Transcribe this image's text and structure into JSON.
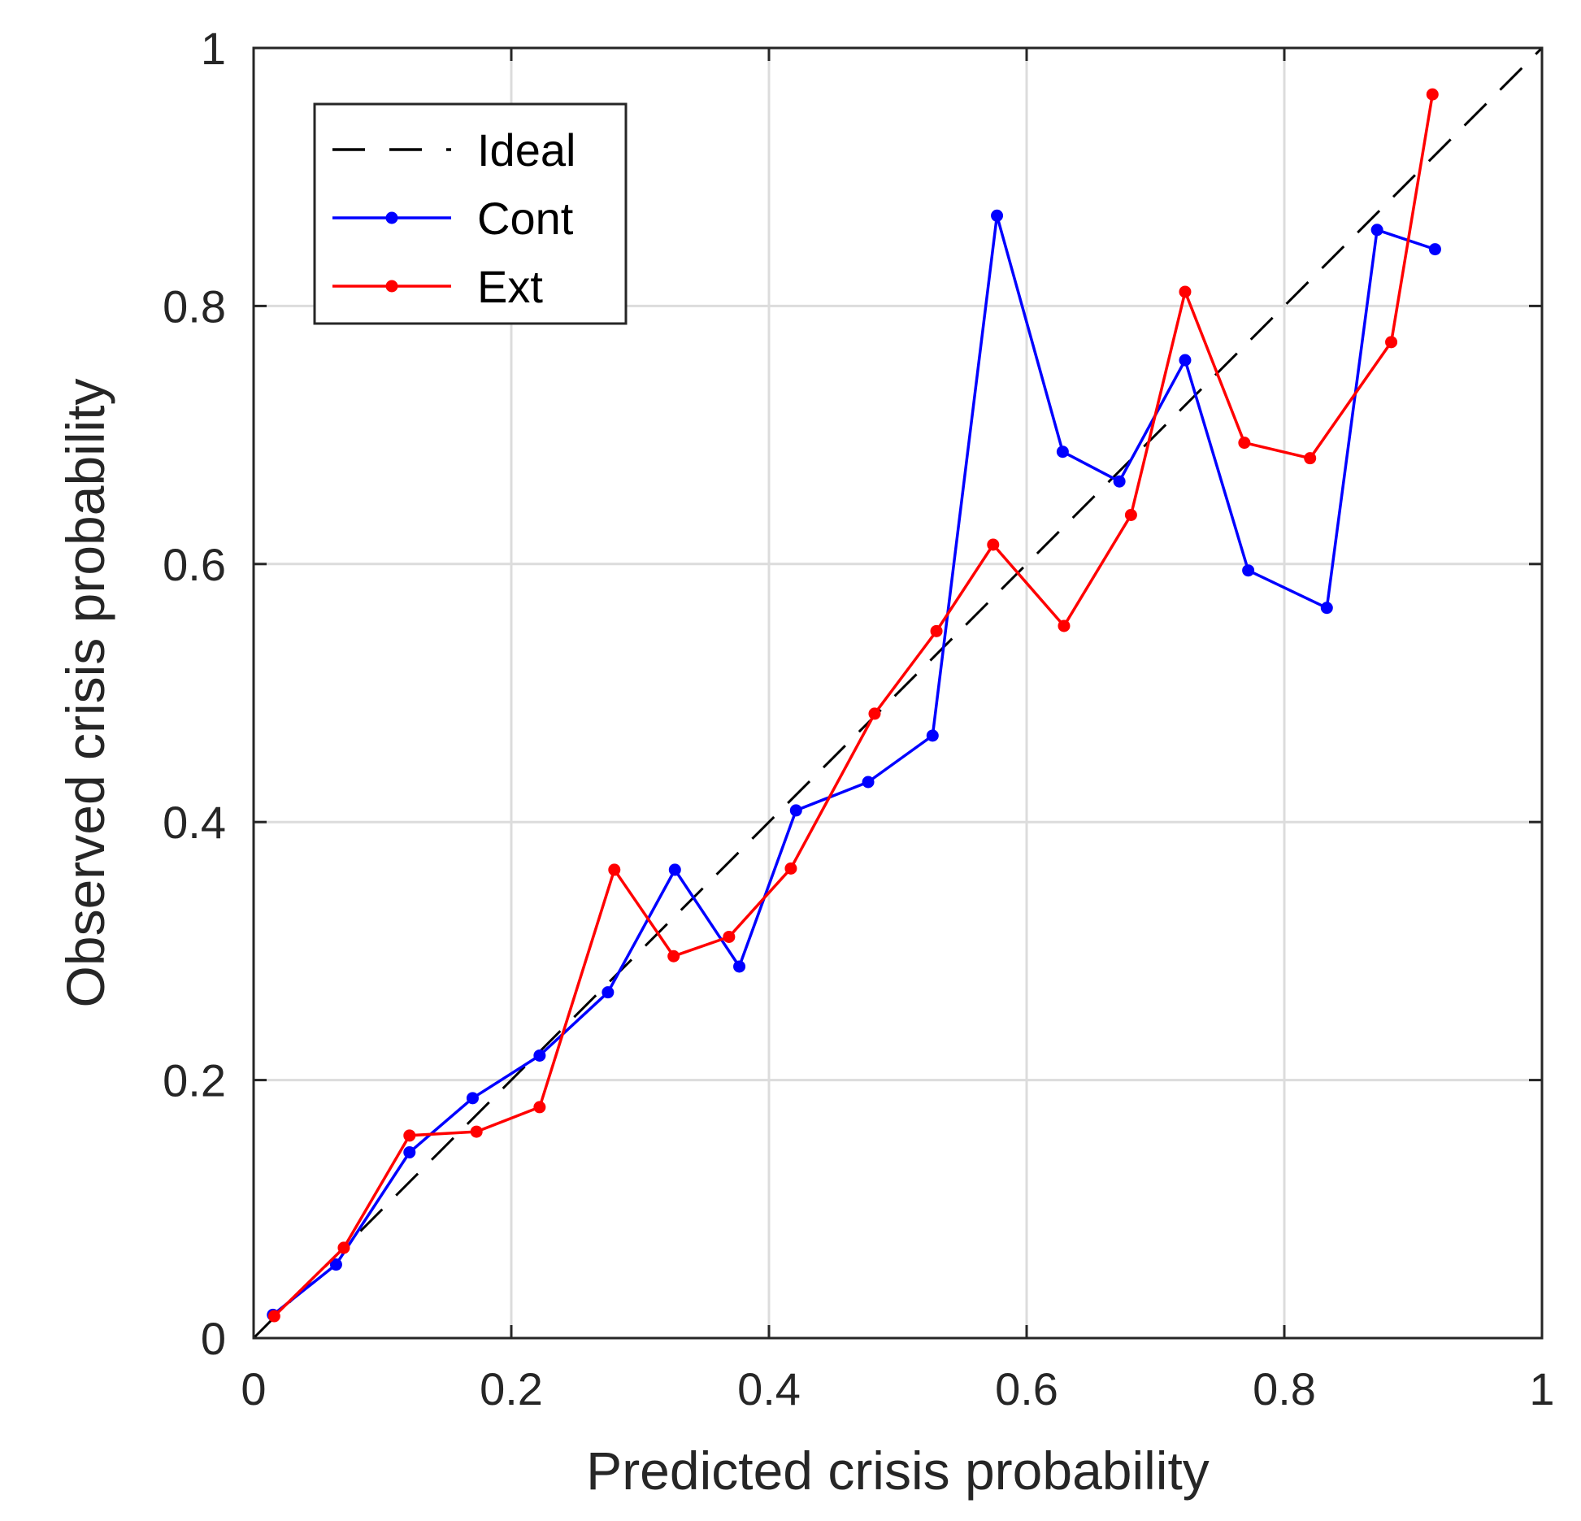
{
  "chart_data": {
    "type": "line",
    "xlabel": "Predicted crisis probability",
    "ylabel": "Observed crisis probability",
    "xlim": [
      0,
      1
    ],
    "ylim": [
      0,
      1
    ],
    "xticks": [
      0,
      0.2,
      0.4,
      0.6,
      0.8,
      1
    ],
    "yticks": [
      0,
      0.2,
      0.4,
      0.6,
      0.8,
      1
    ],
    "xtick_labels": [
      "0",
      "0.2",
      "0.4",
      "0.6",
      "0.8",
      "1"
    ],
    "ytick_labels": [
      "0",
      "0.2",
      "0.4",
      "0.6",
      "0.8",
      "1"
    ],
    "grid": true,
    "legend_position": "top-left",
    "series": [
      {
        "name": "Ideal",
        "style": "dashed",
        "color": "#000000",
        "markers": false,
        "x": [
          0,
          1
        ],
        "y": [
          0,
          1
        ]
      },
      {
        "name": "Cont",
        "style": "solid",
        "color": "#0000ff",
        "markers": true,
        "x": [
          0.015,
          0.064,
          0.121,
          0.17,
          0.222,
          0.275,
          0.327,
          0.377,
          0.421,
          0.477,
          0.527,
          0.577,
          0.628,
          0.672,
          0.723,
          0.772,
          0.833,
          0.872,
          0.917
        ],
        "y": [
          0.018,
          0.057,
          0.144,
          0.186,
          0.219,
          0.268,
          0.363,
          0.288,
          0.409,
          0.431,
          0.467,
          0.87,
          0.687,
          0.664,
          0.758,
          0.595,
          0.566,
          0.859,
          0.844
        ]
      },
      {
        "name": "Ext",
        "style": "solid",
        "color": "#ff0000",
        "markers": true,
        "x": [
          0.016,
          0.07,
          0.121,
          0.173,
          0.222,
          0.28,
          0.326,
          0.369,
          0.417,
          0.482,
          0.53,
          0.574,
          0.629,
          0.681,
          0.723,
          0.769,
          0.82,
          0.883,
          0.915
        ],
        "y": [
          0.017,
          0.07,
          0.157,
          0.16,
          0.179,
          0.363,
          0.296,
          0.311,
          0.364,
          0.484,
          0.548,
          0.615,
          0.552,
          0.638,
          0.811,
          0.694,
          0.682,
          0.772,
          0.964
        ]
      }
    ]
  }
}
